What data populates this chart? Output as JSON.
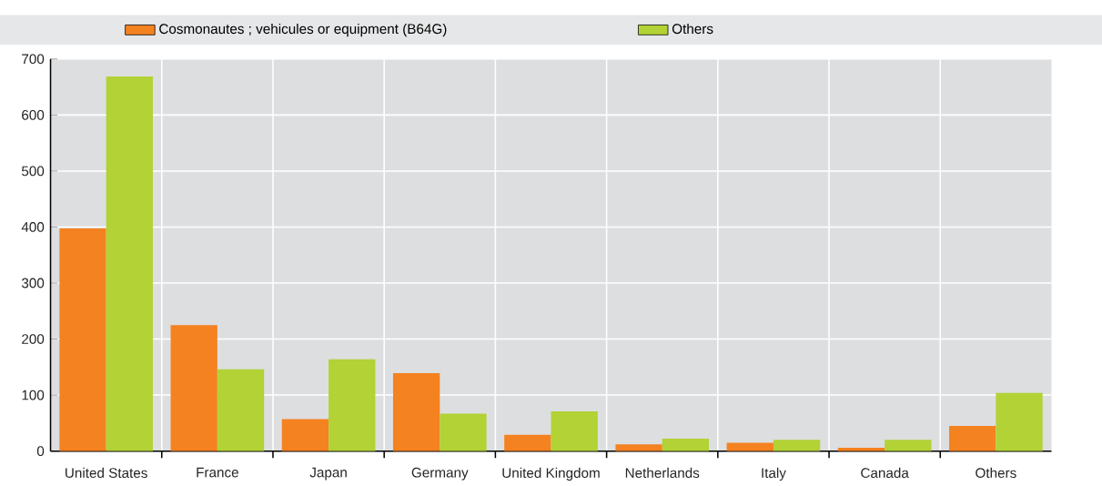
{
  "chart_data": {
    "type": "bar",
    "categories": [
      "United States",
      "France",
      "Japan",
      "Germany",
      "United Kingdom",
      "Netherlands",
      "Italy",
      "Canada",
      "Others"
    ],
    "series": [
      {
        "name": "Cosmonautes ; vehicules or equipment (B64G)",
        "color": "#f58220",
        "values": [
          398,
          225,
          57,
          139,
          29,
          12,
          15,
          6,
          45
        ]
      },
      {
        "name": "Others",
        "color": "#b2d235",
        "values": [
          669,
          146,
          164,
          67,
          71,
          22,
          20,
          20,
          104
        ]
      }
    ],
    "ylim": [
      0,
      700
    ],
    "yticks": [
      0,
      100,
      200,
      300,
      400,
      500,
      600,
      700
    ],
    "grid": true,
    "legend": "top"
  }
}
